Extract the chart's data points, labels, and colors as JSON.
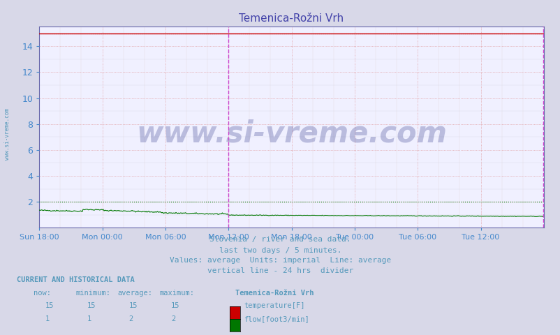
{
  "title": "Temenica-Rožni Vrh",
  "title_color": "#4444aa",
  "bg_color": "#d8d8e8",
  "plot_bg_color": "#f0f0ff",
  "grid_color_major": "#cc8888",
  "grid_color_minor": "#ddcccc",
  "grid_color_hminor": "#ccccdd",
  "tick_color": "#4488cc",
  "x_labels": [
    "Sun 18:00",
    "Mon 00:00",
    "Mon 06:00",
    "Mon 12:00",
    "Mon 18:00",
    "Tue 00:00",
    "Tue 06:00",
    "Tue 12:00"
  ],
  "x_ticks_pos": [
    0,
    72,
    144,
    216,
    288,
    360,
    432,
    504
  ],
  "y_ticks": [
    2,
    4,
    6,
    8,
    10,
    12,
    14
  ],
  "ylim": [
    0,
    15.5
  ],
  "xlim": [
    0,
    576
  ],
  "n_points": 577,
  "temp_value": 15.0,
  "flow_avg": 2.0,
  "temp_color": "#cc0000",
  "flow_color": "#007700",
  "vline_color": "#cc44cc",
  "vline_x": 216,
  "vline2_x": 575,
  "watermark": "www.si-vreme.com",
  "watermark_color": "#1a237e",
  "watermark_alpha": 0.25,
  "sub_text1": "Slovenia / river and sea data.",
  "sub_text2": "last two days / 5 minutes.",
  "sub_text3": "Values: average  Units: imperial  Line: average",
  "sub_text4": "vertical line - 24 hrs  divider",
  "subtitle_color": "#5599bb",
  "sidebar_text": "www.si-vreme.com",
  "sidebar_color": "#5599bb",
  "legend_title": "Temenica-Rožni Vrh",
  "legend_label1": "temperature[F]",
  "legend_label2": "flow[foot3/min]",
  "legend_color1": "#cc0000",
  "legend_color2": "#007700",
  "current_label": "CURRENT AND HISTORICAL DATA",
  "col_headers": [
    "now:",
    "minimum:",
    "average:",
    "maximum:"
  ],
  "row1_vals": [
    "15",
    "15",
    "15",
    "15"
  ],
  "row2_vals": [
    "1",
    "1",
    "2",
    "2"
  ]
}
